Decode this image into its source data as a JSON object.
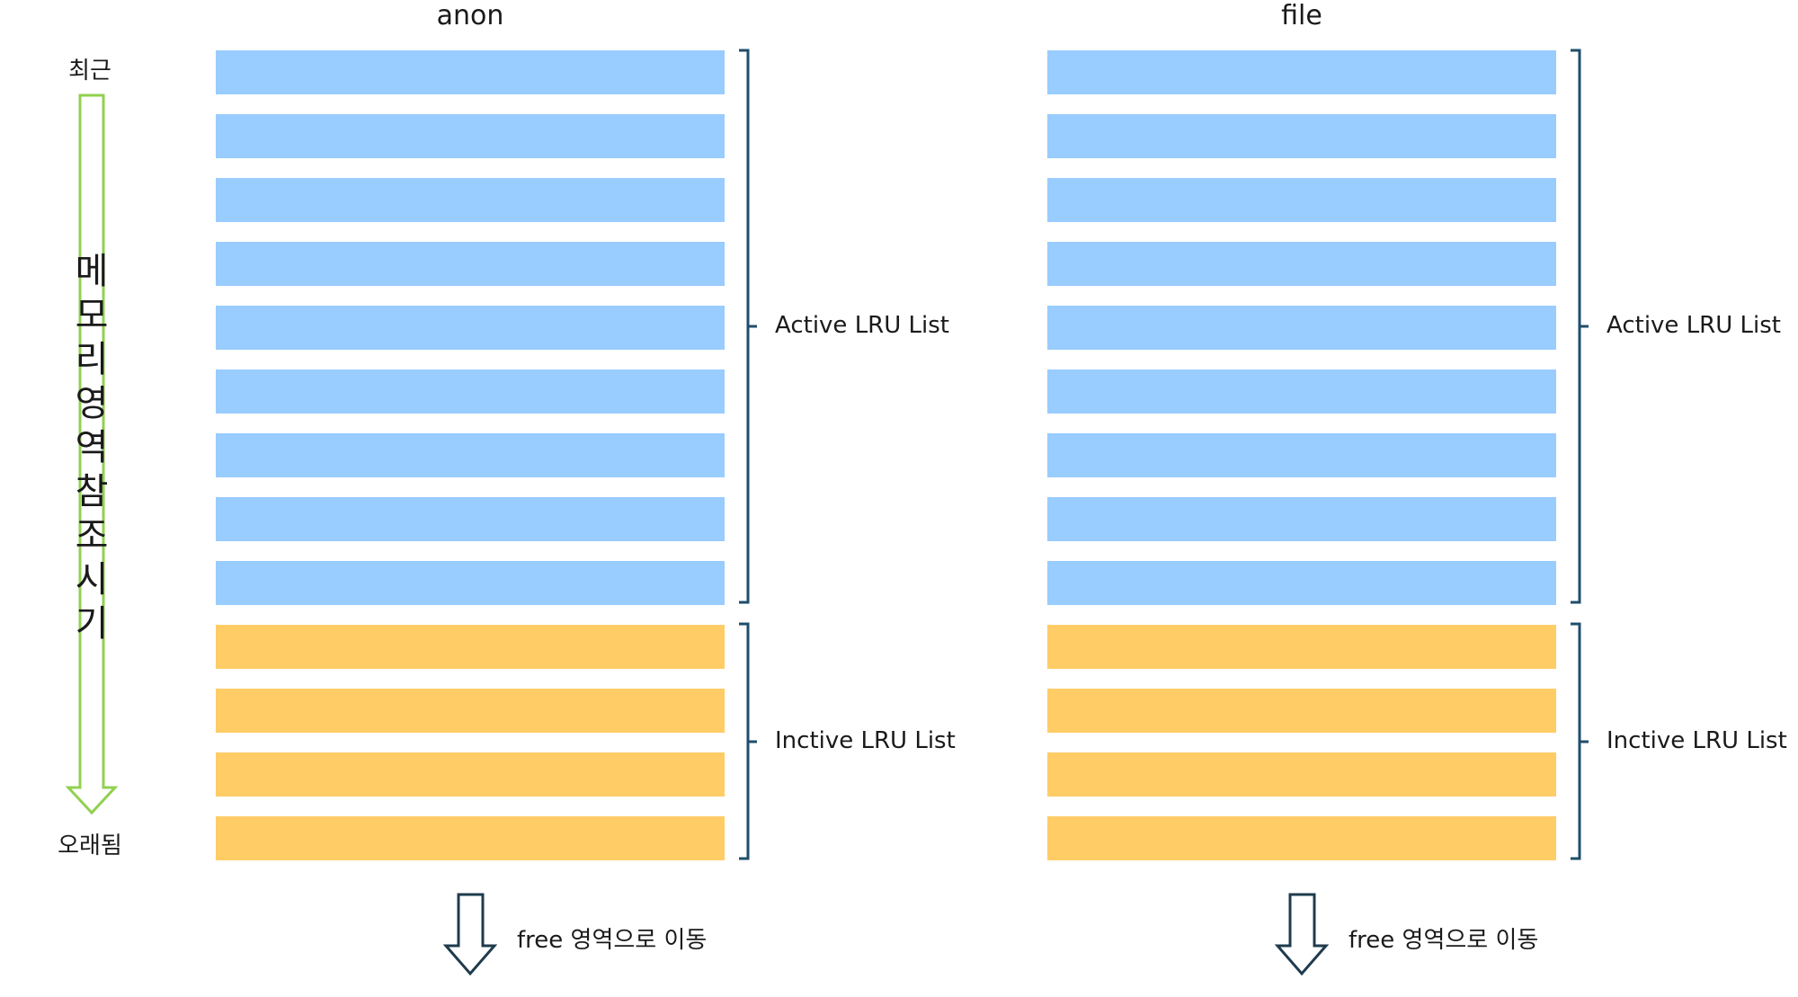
{
  "columns": [
    {
      "title": "anon",
      "active_label": "Active LRU List",
      "inactive_label": "Inctive LRU List",
      "free_label": "free 영역으로 이동",
      "active_count": 9,
      "inactive_count": 4
    },
    {
      "title": "file",
      "active_label": "Active LRU List",
      "inactive_label": "Inctive LRU List",
      "free_label": "free 영역으로 이동",
      "active_count": 9,
      "inactive_count": 4
    }
  ],
  "axis": {
    "top_label": "최근",
    "bottom_label": "오래됨",
    "vertical_label_chars": [
      "메",
      "모",
      "리",
      "영",
      "역",
      "참",
      "조",
      "시",
      "기"
    ]
  },
  "colors": {
    "active": "#99CCFF",
    "inactive": "#FFCC66",
    "bracket": "#1F4E6B",
    "axis_arrow": "#92D050",
    "free_arrow": "#1F3B4D"
  }
}
